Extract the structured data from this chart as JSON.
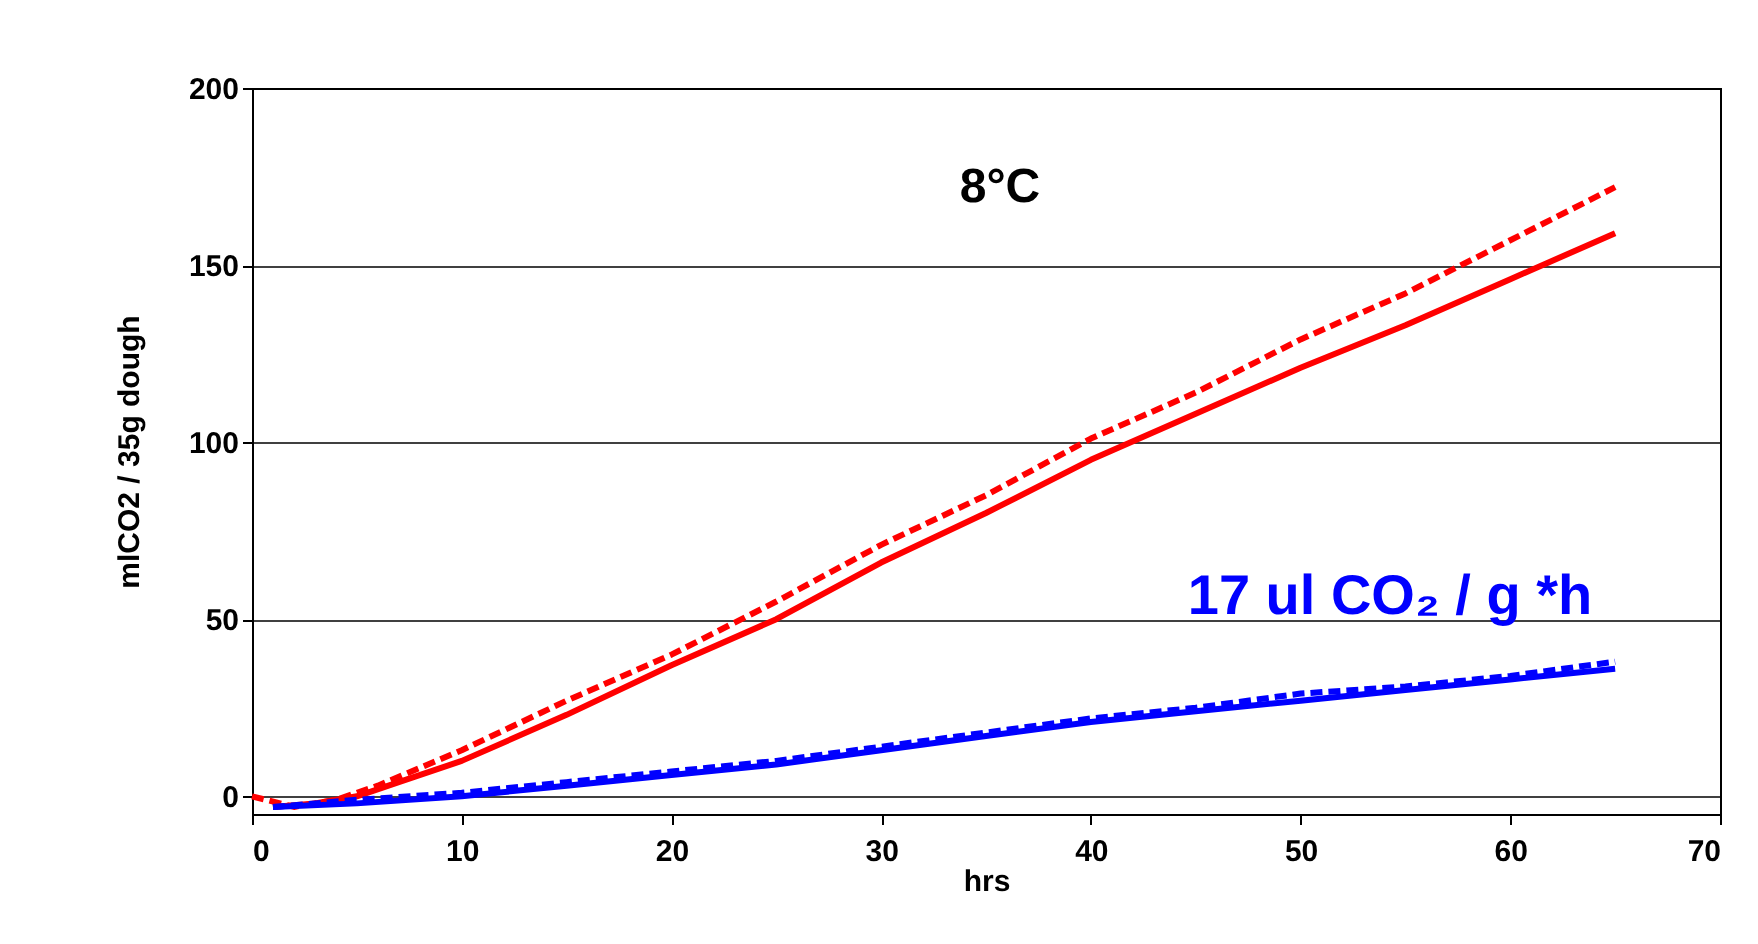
{
  "chart_data": {
    "type": "line",
    "xlabel": "hrs",
    "ylabel": "mlCO2 / 35g dough",
    "xlim": [
      0,
      70
    ],
    "xticks": [
      0,
      10,
      20,
      30,
      40,
      50,
      60,
      70
    ],
    "ylim": [
      -5,
      200
    ],
    "yticks": [
      0,
      50,
      100,
      150,
      200
    ],
    "grid": "y",
    "annotations": [
      "8°C",
      "17 ul CO₂ / g *h"
    ],
    "series": [
      {
        "color": "#ff0000",
        "line_style": "solid",
        "x": [
          1,
          3,
          5,
          7,
          10,
          15,
          20,
          25,
          30,
          35,
          40,
          45,
          50,
          55,
          60,
          65
        ],
        "values": [
          -3,
          -2,
          0,
          4,
          10,
          23,
          37,
          50,
          66,
          80,
          95,
          108,
          121,
          133,
          146,
          159
        ]
      },
      {
        "color": "#ff0000",
        "line_style": "dashed",
        "x": [
          0,
          2,
          4,
          6,
          8,
          10,
          15,
          20,
          25,
          30,
          35,
          40,
          45,
          50,
          55,
          60,
          65
        ],
        "values": [
          0,
          -3,
          -1,
          3,
          8,
          13,
          27,
          40,
          55,
          71,
          85,
          101,
          114,
          129,
          142,
          157,
          172
        ]
      },
      {
        "color": "#0000ff",
        "line_style": "solid",
        "x": [
          1,
          5,
          10,
          15,
          20,
          25,
          30,
          35,
          40,
          45,
          50,
          55,
          60,
          65
        ],
        "values": [
          -3,
          -2,
          0,
          3,
          6,
          9,
          13,
          17,
          21,
          24,
          27,
          30,
          33,
          36
        ]
      },
      {
        "color": "#0000ff",
        "line_style": "dashed",
        "x": [
          1,
          5,
          10,
          15,
          20,
          25,
          30,
          35,
          40,
          45,
          50,
          55,
          60,
          65
        ],
        "values": [
          -3,
          -1,
          1,
          4,
          7,
          10,
          14,
          18,
          22,
          25,
          29,
          31,
          34,
          38
        ]
      }
    ]
  }
}
